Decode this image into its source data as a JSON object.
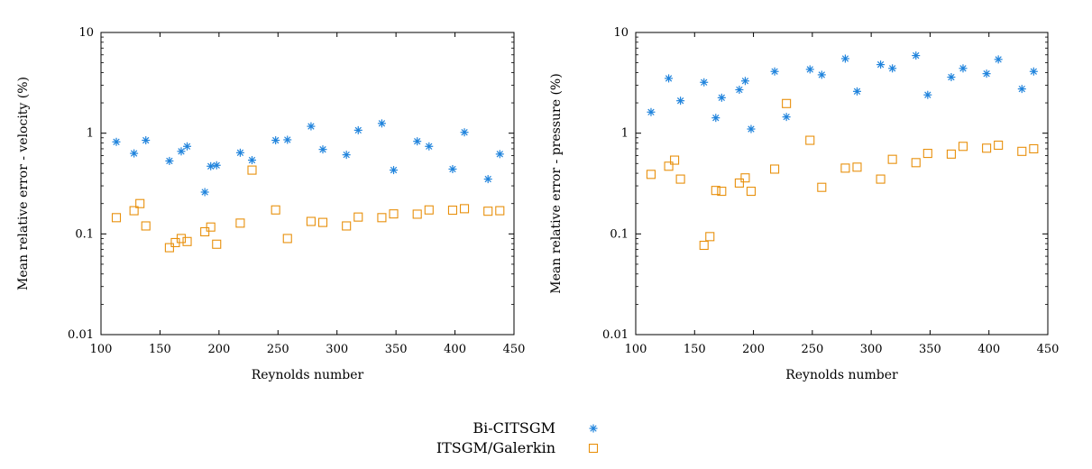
{
  "colors": {
    "bi_citsgm": "#1f83dc",
    "itsgm_galerkin": "#e8900c",
    "axis": "#000000"
  },
  "legend": {
    "items": [
      {
        "label": "Bi-CITSGM",
        "marker": "asterisk",
        "color": "#1f83dc"
      },
      {
        "label": "ITSGM/Galerkin",
        "marker": "square",
        "color": "#e8900c"
      }
    ],
    "placement": "bottom-center"
  },
  "chart_data": [
    {
      "type": "scatter",
      "title": "",
      "xlabel": "Reynolds number",
      "ylabel": "Mean relative error - velocity (%)",
      "yscale": "log",
      "xlim": [
        100,
        450
      ],
      "ylim": [
        0.01,
        10
      ],
      "xticks": [
        100,
        150,
        200,
        250,
        300,
        350,
        400,
        450
      ],
      "yticks": [
        0.01,
        0.1,
        1,
        10
      ],
      "ytick_labels": [
        "0.01",
        "0.1",
        "1",
        "10"
      ],
      "series": [
        {
          "name": "Bi-CITSGM",
          "marker": "asterisk",
          "x": [
            113,
            128,
            138,
            158,
            168,
            173,
            188,
            193,
            198,
            218,
            228,
            248,
            258,
            278,
            288,
            308,
            318,
            338,
            348,
            368,
            378,
            398,
            408,
            428,
            438
          ],
          "y": [
            0.82,
            0.63,
            0.85,
            0.53,
            0.66,
            0.74,
            0.26,
            0.47,
            0.48,
            0.64,
            0.54,
            0.85,
            0.86,
            1.17,
            0.69,
            0.61,
            1.07,
            1.25,
            0.43,
            0.83,
            0.74,
            0.44,
            1.02,
            0.35,
            0.62
          ]
        },
        {
          "name": "ITSGM/Galerkin",
          "marker": "square",
          "x": [
            113,
            128,
            133,
            138,
            158,
            163,
            168,
            173,
            188,
            193,
            198,
            218,
            228,
            248,
            258,
            278,
            288,
            308,
            318,
            338,
            348,
            368,
            378,
            398,
            408,
            428,
            438
          ],
          "y": [
            0.145,
            0.17,
            0.2,
            0.12,
            0.073,
            0.082,
            0.09,
            0.084,
            0.105,
            0.117,
            0.079,
            0.128,
            0.43,
            0.173,
            0.09,
            0.133,
            0.13,
            0.12,
            0.147,
            0.145,
            0.158,
            0.157,
            0.173,
            0.172,
            0.178,
            0.168,
            0.17
          ]
        }
      ]
    },
    {
      "type": "scatter",
      "title": "",
      "xlabel": "Reynolds number",
      "ylabel": "Mean relative error - pressure (%)",
      "yscale": "log",
      "xlim": [
        100,
        450
      ],
      "ylim": [
        0.01,
        10
      ],
      "xticks": [
        100,
        150,
        200,
        250,
        300,
        350,
        400,
        450
      ],
      "yticks": [
        0.01,
        0.1,
        1,
        10
      ],
      "ytick_labels": [
        "0.01",
        "0.1",
        "1",
        "10"
      ],
      "series": [
        {
          "name": "Bi-CITSGM",
          "marker": "asterisk",
          "x": [
            113,
            128,
            138,
            158,
            168,
            173,
            188,
            193,
            198,
            218,
            228,
            248,
            258,
            278,
            288,
            308,
            318,
            338,
            348,
            368,
            378,
            398,
            408,
            428,
            438
          ],
          "y": [
            1.62,
            3.5,
            2.1,
            3.2,
            1.42,
            2.25,
            2.7,
            3.3,
            1.1,
            4.1,
            1.45,
            4.3,
            3.8,
            5.5,
            2.6,
            4.8,
            4.4,
            5.9,
            2.4,
            3.6,
            4.4,
            3.9,
            5.4,
            2.75,
            4.1
          ]
        },
        {
          "name": "ITSGM/Galerkin",
          "marker": "square",
          "x": [
            113,
            128,
            133,
            138,
            158,
            163,
            168,
            173,
            188,
            193,
            198,
            218,
            228,
            248,
            258,
            278,
            288,
            308,
            318,
            338,
            348,
            368,
            378,
            398,
            408,
            428,
            438
          ],
          "y": [
            0.39,
            0.47,
            0.54,
            0.35,
            0.077,
            0.094,
            0.27,
            0.265,
            0.32,
            0.36,
            0.265,
            0.44,
            1.97,
            0.85,
            0.29,
            0.45,
            0.46,
            0.35,
            0.55,
            0.51,
            0.63,
            0.62,
            0.74,
            0.71,
            0.76,
            0.66,
            0.7
          ]
        }
      ]
    }
  ]
}
